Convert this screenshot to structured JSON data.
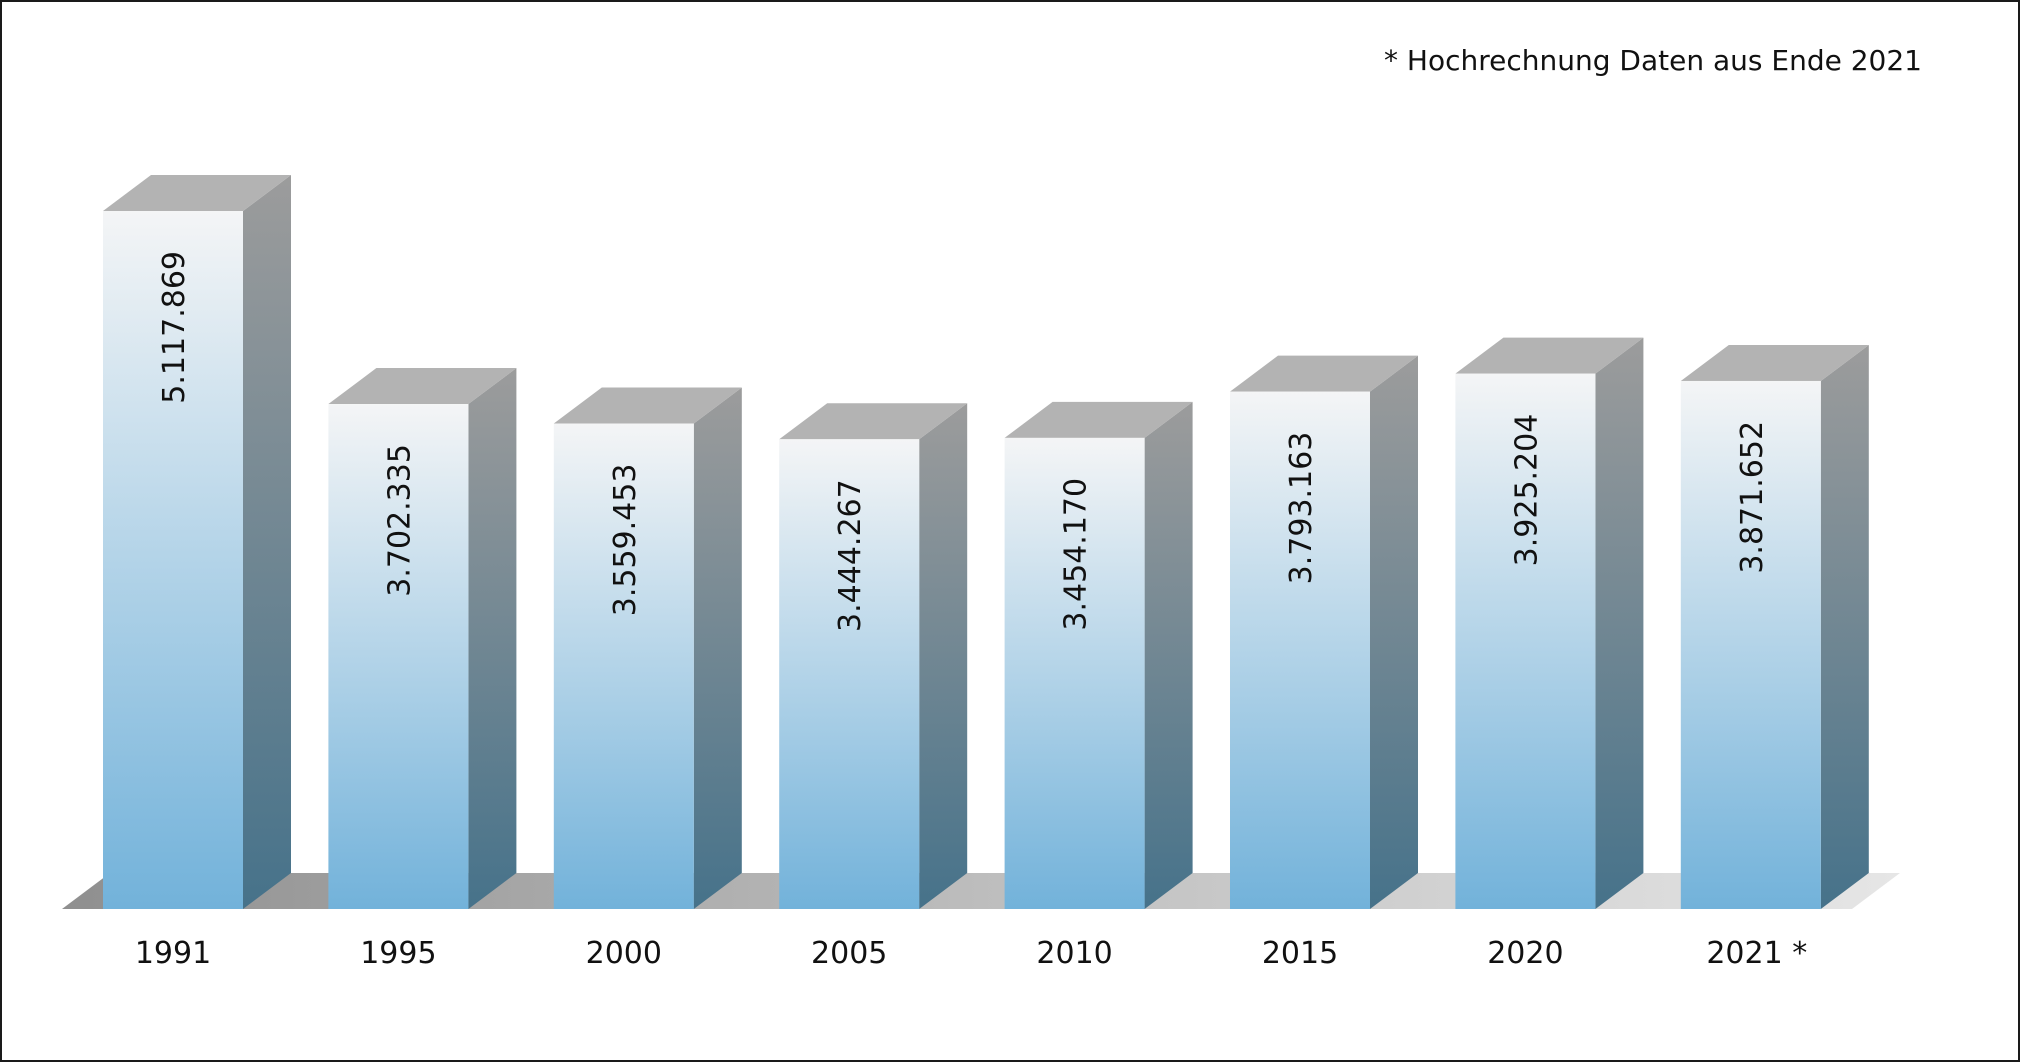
{
  "chart_data": {
    "type": "bar",
    "style": "3d-column",
    "categories": [
      "1991",
      "1995",
      "2000",
      "2005",
      "2010",
      "2015",
      "2020",
      "2021 *"
    ],
    "values": [
      5117869,
      3702335,
      3559453,
      3444267,
      3454170,
      3793163,
      3925204,
      3871652
    ],
    "value_labels": [
      "5.117.869",
      "3.702.335",
      "3.559.453",
      "3.444.267",
      "3.454.170",
      "3.793.163",
      "3.925.204",
      "3.871.652"
    ],
    "footnote": "* Hochrechnung Daten aus Ende 2021",
    "title": "",
    "xlabel": "",
    "ylabel": "",
    "ylim": [
      0,
      5117869
    ],
    "grid": false,
    "legend": "none",
    "value_label_orientation": "vertical",
    "colors": {
      "front_top": "#f4f5f6",
      "front_bottom": "#72b2da",
      "side_top": "#9c9c9c",
      "side_bottom": "#46728a",
      "cap": "#b3b3b3",
      "floor": "#8f8f8f"
    }
  }
}
